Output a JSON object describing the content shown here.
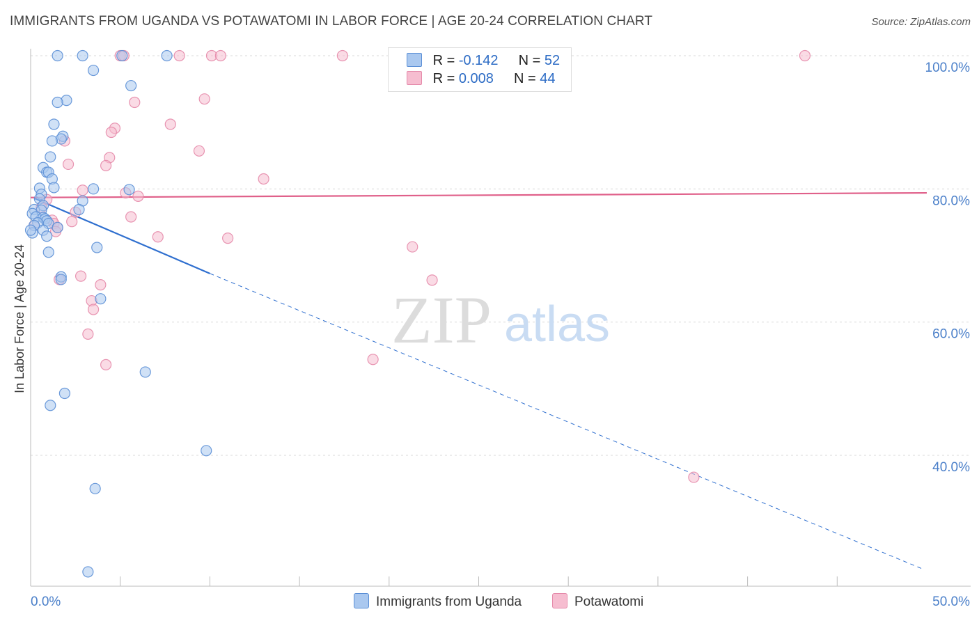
{
  "title": "IMMIGRANTS FROM UGANDA VS POTAWATOMI IN LABOR FORCE | AGE 20-24 CORRELATION CHART",
  "source": "Source: ZipAtlas.com",
  "watermark": {
    "zip": "ZIP",
    "atlas": "atlas"
  },
  "colors": {
    "blue_fill": "#aac8ef",
    "blue_stroke": "#5b8fd6",
    "blue_line": "#2f6fcf",
    "pink_fill": "#f6bdd0",
    "pink_stroke": "#e58aaa",
    "pink_line": "#e0608a",
    "axis_text": "#4a7fc9",
    "grid": "#d8d8d8"
  },
  "legend": {
    "rows": [
      {
        "r_label": "R = ",
        "r_value": "-0.142",
        "n_label": "N = ",
        "n_value": "52"
      },
      {
        "r_label": "R = ",
        "r_value": "0.008",
        "n_label": "N = ",
        "n_value": "44"
      }
    ]
  },
  "bottom_legend": [
    "Immigrants from Uganda",
    "Potawatomi"
  ],
  "chart_data": {
    "type": "scatter",
    "title": "IMMIGRANTS FROM UGANDA VS POTAWATOMI IN LABOR FORCE | AGE 20-24 CORRELATION CHART",
    "xlabel": "",
    "ylabel": "In Labor Force | Age 20-24",
    "xlim": [
      0,
      50
    ],
    "ylim": [
      20,
      103
    ],
    "x_tick_labels": [
      {
        "value": 0,
        "label": "0.0%"
      },
      {
        "value": 50,
        "label": "50.0%"
      }
    ],
    "x_minor_ticks": [
      5,
      10,
      15,
      20,
      25,
      30,
      35,
      40,
      45
    ],
    "y_ticks": [
      {
        "value": 100,
        "label": "100.0%"
      },
      {
        "value": 80,
        "label": "80.0%"
      },
      {
        "value": 60,
        "label": "60.0%"
      },
      {
        "value": 40,
        "label": "40.0%"
      }
    ],
    "series": [
      {
        "name": "Immigrants from Uganda",
        "R": -0.142,
        "N": 52,
        "trend": {
          "solid": [
            [
              0.2,
              78.6
            ],
            [
              10.0,
              67.3
            ]
          ],
          "dashed": [
            [
              10.0,
              67.3
            ],
            [
              49.8,
              22.9
            ]
          ]
        },
        "points": [
          [
            1.5,
            100
          ],
          [
            2.9,
            100
          ],
          [
            5.1,
            100
          ],
          [
            7.6,
            100
          ],
          [
            3.5,
            97.8
          ],
          [
            5.6,
            95.5
          ],
          [
            2.0,
            93.3
          ],
          [
            1.5,
            93.0
          ],
          [
            1.3,
            89.7
          ],
          [
            1.8,
            87.9
          ],
          [
            1.7,
            87.5
          ],
          [
            1.2,
            87.2
          ],
          [
            1.1,
            84.8
          ],
          [
            0.7,
            83.2
          ],
          [
            0.9,
            82.5
          ],
          [
            1.0,
            82.5
          ],
          [
            1.2,
            81.5
          ],
          [
            1.3,
            80.2
          ],
          [
            0.5,
            80.1
          ],
          [
            3.5,
            80.0
          ],
          [
            5.5,
            79.9
          ],
          [
            0.6,
            79.2
          ],
          [
            0.5,
            78.5
          ],
          [
            2.9,
            78.2
          ],
          [
            0.7,
            77.5
          ],
          [
            0.2,
            76.9
          ],
          [
            0.6,
            76.8
          ],
          [
            2.7,
            76.9
          ],
          [
            0.1,
            76.3
          ],
          [
            0.3,
            75.8
          ],
          [
            0.7,
            75.7
          ],
          [
            0.8,
            75.5
          ],
          [
            0.9,
            75.2
          ],
          [
            0.4,
            74.9
          ],
          [
            0.2,
            74.5
          ],
          [
            1.0,
            74.8
          ],
          [
            1.5,
            74.2
          ],
          [
            0.7,
            73.8
          ],
          [
            0.1,
            73.4
          ],
          [
            0.9,
            72.9
          ],
          [
            3.7,
            71.2
          ],
          [
            1.0,
            70.5
          ],
          [
            1.7,
            66.8
          ],
          [
            1.7,
            66.4
          ],
          [
            3.9,
            63.5
          ],
          [
            6.4,
            52.5
          ],
          [
            1.9,
            49.3
          ],
          [
            1.1,
            47.5
          ],
          [
            9.8,
            40.7
          ],
          [
            3.6,
            35.0
          ],
          [
            3.2,
            22.5
          ],
          [
            0.0,
            73.8
          ]
        ]
      },
      {
        "name": "Potawatomi",
        "R": 0.008,
        "N": 44,
        "trend": {
          "solid": [
            [
              0.0,
              78.7
            ],
            [
              50.0,
              79.4
            ]
          ]
        },
        "points": [
          [
            5.0,
            100
          ],
          [
            5.2,
            100
          ],
          [
            8.3,
            100
          ],
          [
            10.1,
            100
          ],
          [
            10.6,
            100
          ],
          [
            17.4,
            100
          ],
          [
            43.2,
            100
          ],
          [
            9.7,
            93.5
          ],
          [
            5.8,
            93.0
          ],
          [
            7.8,
            89.7
          ],
          [
            4.7,
            89.1
          ],
          [
            4.5,
            88.5
          ],
          [
            1.9,
            87.2
          ],
          [
            9.4,
            85.7
          ],
          [
            4.4,
            84.7
          ],
          [
            2.1,
            83.7
          ],
          [
            4.2,
            83.5
          ],
          [
            13.0,
            81.5
          ],
          [
            2.9,
            79.8
          ],
          [
            5.3,
            79.4
          ],
          [
            6.0,
            78.9
          ],
          [
            0.9,
            78.4
          ],
          [
            0.6,
            77.2
          ],
          [
            2.5,
            76.5
          ],
          [
            5.6,
            75.8
          ],
          [
            1.2,
            75.3
          ],
          [
            1.3,
            74.8
          ],
          [
            2.3,
            75.1
          ],
          [
            1.5,
            74.2
          ],
          [
            0.2,
            74.5
          ],
          [
            1.4,
            73.6
          ],
          [
            7.1,
            72.8
          ],
          [
            11.0,
            72.6
          ],
          [
            21.3,
            71.3
          ],
          [
            2.8,
            66.9
          ],
          [
            3.9,
            65.6
          ],
          [
            22.4,
            66.3
          ],
          [
            1.6,
            66.4
          ],
          [
            3.4,
            63.2
          ],
          [
            3.5,
            61.9
          ],
          [
            3.2,
            58.2
          ],
          [
            4.2,
            53.6
          ],
          [
            19.1,
            54.4
          ],
          [
            37.0,
            36.7
          ]
        ]
      }
    ]
  }
}
